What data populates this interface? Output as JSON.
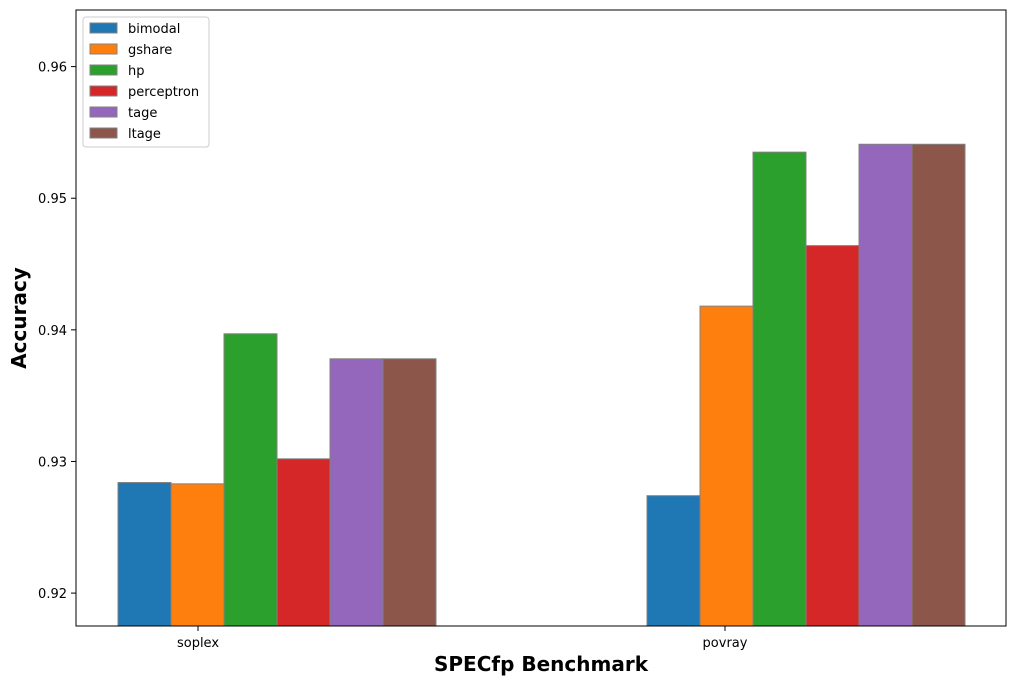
{
  "chart_data": {
    "type": "bar",
    "title": "",
    "xlabel": "SPECfp Benchmark",
    "ylabel": "Accuracy",
    "categories": [
      "soplex",
      "povray"
    ],
    "ylim": [
      0.9175,
      0.9643
    ],
    "yticks": [
      "0.92",
      "0.93",
      "0.94",
      "0.95",
      "0.96"
    ],
    "legend_position": "top-left",
    "grid": false,
    "series": [
      {
        "name": "bimodal",
        "color": "#1f77b4",
        "values": [
          0.9284,
          0.9274
        ]
      },
      {
        "name": "gshare",
        "color": "#ff7f0e",
        "values": [
          0.9283,
          0.9418
        ]
      },
      {
        "name": "hp",
        "color": "#2ca02c",
        "values": [
          0.9397,
          0.9535
        ]
      },
      {
        "name": "perceptron",
        "color": "#d62728",
        "values": [
          0.9302,
          0.9464
        ]
      },
      {
        "name": "tage",
        "color": "#9467bd",
        "values": [
          0.9378,
          0.9541
        ]
      },
      {
        "name": "ltage",
        "color": "#8c564b",
        "values": [
          0.9378,
          0.9541
        ]
      }
    ]
  }
}
